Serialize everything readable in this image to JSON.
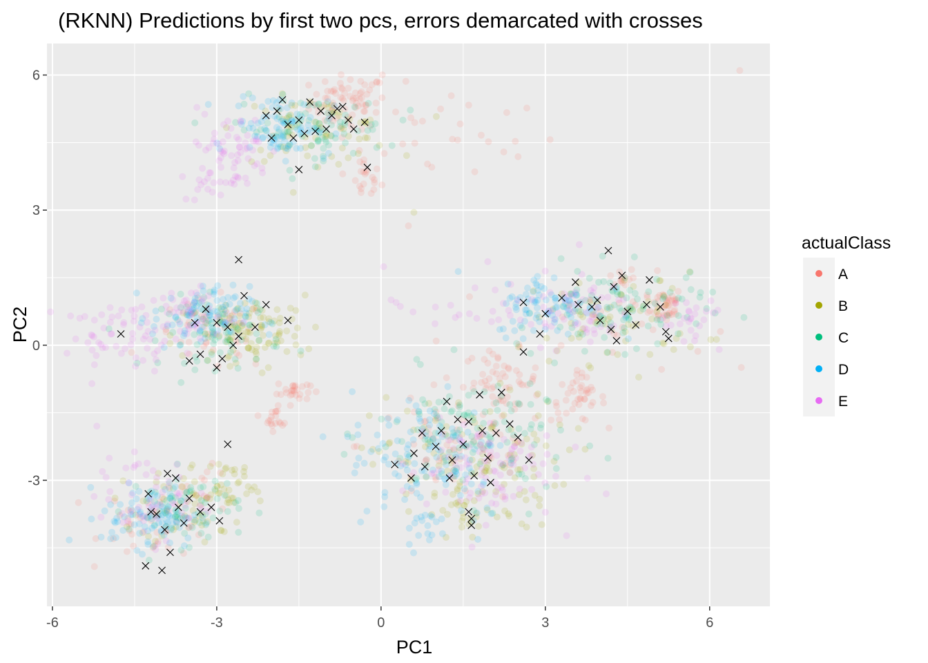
{
  "chart_data": {
    "type": "scatter",
    "title": "(RKNN) Predictions by first two pcs, errors demarcated with crosses",
    "xlabel": "PC1",
    "ylabel": "PC2",
    "xlim": [
      -6.1,
      7.1
    ],
    "ylim": [
      -5.8,
      6.7
    ],
    "x_ticks": [
      -6,
      -3,
      0,
      3,
      6
    ],
    "y_ticks": [
      -3,
      0,
      3,
      6
    ],
    "x_tick_labels": [
      "-6",
      "-3",
      "0",
      "3",
      "6"
    ],
    "y_tick_labels": [
      "-3",
      "0",
      "3",
      "6"
    ],
    "grid": true,
    "background": "#ebebeb",
    "legend": {
      "title": "actualClass",
      "position": "right",
      "entries": [
        {
          "label": "A",
          "color": "#F8766D"
        },
        {
          "label": "B",
          "color": "#A3A500"
        },
        {
          "label": "C",
          "color": "#00BF7D"
        },
        {
          "label": "D",
          "color": "#00B0F6"
        },
        {
          "label": "E",
          "color": "#E76BF3"
        }
      ]
    },
    "point_alpha": 0.15,
    "error_marker": "cross",
    "series": [
      {
        "name": "A",
        "color": "#F8766D",
        "clusters": [
          {
            "cx": -0.6,
            "cy": 5.4,
            "sx": 0.35,
            "sy": 0.3,
            "n": 70
          },
          {
            "cx": -0.3,
            "cy": 3.7,
            "sx": 0.15,
            "sy": 0.25,
            "n": 20
          },
          {
            "cx": 1.2,
            "cy": 4.7,
            "sx": 1.0,
            "sy": 0.6,
            "n": 30
          },
          {
            "cx": 5.2,
            "cy": 0.9,
            "sx": 0.15,
            "sy": 0.2,
            "n": 40
          },
          {
            "cx": 4.4,
            "cy": 1.5,
            "sx": 0.12,
            "sy": 0.12,
            "n": 12
          },
          {
            "cx": 4.4,
            "cy": 0.5,
            "sx": 0.8,
            "sy": 0.5,
            "n": 30
          },
          {
            "cx": -1.6,
            "cy": -1.0,
            "sx": 0.15,
            "sy": 0.12,
            "n": 25
          },
          {
            "cx": -1.9,
            "cy": -1.6,
            "sx": 0.12,
            "sy": 0.15,
            "n": 20
          },
          {
            "cx": 2.2,
            "cy": -0.8,
            "sx": 0.35,
            "sy": 0.35,
            "n": 55
          },
          {
            "cx": 3.6,
            "cy": -1.2,
            "sx": 0.25,
            "sy": 0.25,
            "n": 40
          },
          {
            "cx": 1.4,
            "cy": -2.2,
            "sx": 0.9,
            "sy": 0.7,
            "n": 60
          },
          {
            "cx": -3.1,
            "cy": 0.2,
            "sx": 0.55,
            "sy": 0.4,
            "n": 40
          },
          {
            "cx": -4.1,
            "cy": -3.9,
            "sx": 0.5,
            "sy": 0.4,
            "n": 40
          },
          {
            "cx": -3.2,
            "cy": -3.1,
            "sx": 0.2,
            "sy": 0.2,
            "n": 10
          }
        ]
      },
      {
        "name": "B",
        "color": "#A3A500",
        "clusters": [
          {
            "cx": -1.2,
            "cy": 4.8,
            "sx": 0.7,
            "sy": 0.35,
            "n": 70
          },
          {
            "cx": -2.6,
            "cy": 0.2,
            "sx": 0.6,
            "sy": 0.45,
            "n": 80
          },
          {
            "cx": -2.0,
            "cy": 0.5,
            "sx": 0.3,
            "sy": 0.35,
            "n": 25
          },
          {
            "cx": -3.4,
            "cy": -3.5,
            "sx": 0.5,
            "sy": 0.45,
            "n": 60
          },
          {
            "cx": -2.8,
            "cy": -3.1,
            "sx": 0.3,
            "sy": 0.35,
            "n": 25
          },
          {
            "cx": 1.6,
            "cy": -2.6,
            "sx": 0.9,
            "sy": 0.75,
            "n": 110
          },
          {
            "cx": 1.6,
            "cy": -3.8,
            "sx": 0.3,
            "sy": 0.3,
            "n": 25
          },
          {
            "cx": 4.3,
            "cy": 0.6,
            "sx": 0.8,
            "sy": 0.5,
            "n": 70
          }
        ]
      },
      {
        "name": "C",
        "color": "#00BF7D",
        "clusters": [
          {
            "cx": -1.3,
            "cy": 4.8,
            "sx": 0.7,
            "sy": 0.35,
            "n": 80
          },
          {
            "cx": -2.9,
            "cy": 0.3,
            "sx": 0.55,
            "sy": 0.4,
            "n": 80
          },
          {
            "cx": -3.6,
            "cy": -3.6,
            "sx": 0.5,
            "sy": 0.4,
            "n": 70
          },
          {
            "cx": 1.7,
            "cy": -2.0,
            "sx": 0.9,
            "sy": 0.7,
            "n": 120
          },
          {
            "cx": 4.4,
            "cy": 0.8,
            "sx": 0.75,
            "sy": 0.45,
            "n": 90
          }
        ]
      },
      {
        "name": "D",
        "color": "#00B0F6",
        "clusters": [
          {
            "cx": -1.8,
            "cy": 4.9,
            "sx": 0.45,
            "sy": 0.35,
            "n": 90
          },
          {
            "cx": -3.3,
            "cy": 0.6,
            "sx": 0.45,
            "sy": 0.35,
            "n": 90
          },
          {
            "cx": -4.2,
            "cy": -3.8,
            "sx": 0.45,
            "sy": 0.35,
            "n": 90
          },
          {
            "cx": 0.9,
            "cy": -2.4,
            "sx": 0.75,
            "sy": 0.7,
            "n": 110
          },
          {
            "cx": 3.1,
            "cy": 0.9,
            "sx": 0.5,
            "sy": 0.35,
            "n": 90
          },
          {
            "cx": 0.9,
            "cy": -3.8,
            "sx": 0.5,
            "sy": 0.3,
            "n": 25
          }
        ]
      },
      {
        "name": "E",
        "color": "#E76BF3",
        "clusters": [
          {
            "cx": -2.8,
            "cy": 4.3,
            "sx": 0.4,
            "sy": 0.45,
            "n": 60
          },
          {
            "cx": -3.1,
            "cy": 3.6,
            "sx": 0.25,
            "sy": 0.2,
            "n": 15
          },
          {
            "cx": -4.7,
            "cy": 0.2,
            "sx": 0.55,
            "sy": 0.35,
            "n": 60
          },
          {
            "cx": -3.5,
            "cy": 0.7,
            "sx": 0.4,
            "sy": 0.3,
            "n": 50
          },
          {
            "cx": -4.2,
            "cy": -3.4,
            "sx": 0.5,
            "sy": 0.45,
            "n": 60
          },
          {
            "cx": 1.8,
            "cy": -2.7,
            "sx": 0.7,
            "sy": 0.6,
            "n": 100
          },
          {
            "cx": 3.4,
            "cy": 0.8,
            "sx": 0.6,
            "sy": 0.4,
            "n": 60
          },
          {
            "cx": 5.7,
            "cy": 0.4,
            "sx": 0.3,
            "sy": 0.3,
            "n": 25
          },
          {
            "cx": 1.5,
            "cy": 0.9,
            "sx": 0.7,
            "sy": 0.4,
            "n": 20
          }
        ]
      }
    ],
    "outlier_points": [
      {
        "x": 6.55,
        "y": 6.1,
        "series": "A"
      },
      {
        "x": 0.5,
        "y": 2.65,
        "series": "A"
      },
      {
        "x": 0.6,
        "y": 2.95,
        "series": "B"
      },
      {
        "x": -5.5,
        "y": 0.6,
        "series": "E"
      },
      {
        "x": 0.4,
        "y": 5.0,
        "series": "C"
      }
    ],
    "errors": [
      {
        "x": -2.1,
        "y": 5.1
      },
      {
        "x": -1.9,
        "y": 5.2
      },
      {
        "x": -1.7,
        "y": 4.9
      },
      {
        "x": -1.5,
        "y": 5.0
      },
      {
        "x": -1.4,
        "y": 4.7
      },
      {
        "x": -1.2,
        "y": 4.75
      },
      {
        "x": -1.0,
        "y": 4.8
      },
      {
        "x": -0.8,
        "y": 5.25
      },
      {
        "x": -0.7,
        "y": 5.3
      },
      {
        "x": -0.6,
        "y": 5.0
      },
      {
        "x": -0.5,
        "y": 4.8
      },
      {
        "x": -0.3,
        "y": 4.95
      },
      {
        "x": -0.25,
        "y": 3.95
      },
      {
        "x": -1.5,
        "y": 3.9
      },
      {
        "x": -1.8,
        "y": 5.45
      },
      {
        "x": -1.3,
        "y": 5.4
      },
      {
        "x": -2.0,
        "y": 4.6
      },
      {
        "x": -1.1,
        "y": 5.2
      },
      {
        "x": -0.9,
        "y": 5.1
      },
      {
        "x": -1.6,
        "y": 4.6
      },
      {
        "x": -2.6,
        "y": 1.9
      },
      {
        "x": -3.2,
        "y": 0.8
      },
      {
        "x": -3.0,
        "y": 0.5
      },
      {
        "x": -2.8,
        "y": 0.4
      },
      {
        "x": -3.3,
        "y": -0.2
      },
      {
        "x": -3.0,
        "y": -0.5
      },
      {
        "x": -2.6,
        "y": 0.2
      },
      {
        "x": -2.5,
        "y": 1.1
      },
      {
        "x": -2.3,
        "y": 0.4
      },
      {
        "x": -1.7,
        "y": 0.55
      },
      {
        "x": -3.5,
        "y": -0.35
      },
      {
        "x": -2.9,
        "y": -0.3
      },
      {
        "x": -4.75,
        "y": 0.25
      },
      {
        "x": -2.1,
        "y": 0.9
      },
      {
        "x": -3.4,
        "y": 0.5
      },
      {
        "x": -2.7,
        "y": 0.0
      },
      {
        "x": -2.8,
        "y": -2.2
      },
      {
        "x": -3.9,
        "y": -2.85
      },
      {
        "x": -4.25,
        "y": -3.3
      },
      {
        "x": -3.5,
        "y": -3.4
      },
      {
        "x": -3.3,
        "y": -3.7
      },
      {
        "x": -3.7,
        "y": -3.6
      },
      {
        "x": -4.1,
        "y": -3.75
      },
      {
        "x": -3.95,
        "y": -4.1
      },
      {
        "x": -4.3,
        "y": -4.9
      },
      {
        "x": -4.0,
        "y": -5.0
      },
      {
        "x": -3.85,
        "y": -4.6
      },
      {
        "x": -2.95,
        "y": -3.9
      },
      {
        "x": -3.6,
        "y": -3.95
      },
      {
        "x": -4.2,
        "y": -3.7
      },
      {
        "x": -3.1,
        "y": -3.6
      },
      {
        "x": -3.75,
        "y": -2.95
      },
      {
        "x": 2.6,
        "y": -0.15
      },
      {
        "x": 2.2,
        "y": -1.05
      },
      {
        "x": 1.8,
        "y": -1.1
      },
      {
        "x": 1.6,
        "y": -1.7
      },
      {
        "x": 1.2,
        "y": -1.25
      },
      {
        "x": 1.1,
        "y": -1.9
      },
      {
        "x": 0.75,
        "y": -1.95
      },
      {
        "x": 0.6,
        "y": -2.4
      },
      {
        "x": 0.25,
        "y": -2.65
      },
      {
        "x": 0.55,
        "y": -2.95
      },
      {
        "x": 0.8,
        "y": -2.7
      },
      {
        "x": 1.0,
        "y": -2.25
      },
      {
        "x": 1.3,
        "y": -2.55
      },
      {
        "x": 1.5,
        "y": -2.2
      },
      {
        "x": 1.25,
        "y": -2.95
      },
      {
        "x": 1.6,
        "y": -3.7
      },
      {
        "x": 1.65,
        "y": -3.85
      },
      {
        "x": 1.65,
        "y": -4.0
      },
      {
        "x": 1.85,
        "y": -1.9
      },
      {
        "x": 2.1,
        "y": -1.95
      },
      {
        "x": 2.35,
        "y": -1.75
      },
      {
        "x": 2.7,
        "y": -2.55
      },
      {
        "x": 2.5,
        "y": -2.05
      },
      {
        "x": 1.95,
        "y": -2.5
      },
      {
        "x": 2.0,
        "y": -3.05
      },
      {
        "x": 1.7,
        "y": -2.9
      },
      {
        "x": 1.4,
        "y": -1.65
      },
      {
        "x": 2.9,
        "y": 0.25
      },
      {
        "x": 3.0,
        "y": 0.7
      },
      {
        "x": 3.3,
        "y": 1.05
      },
      {
        "x": 3.6,
        "y": 0.9
      },
      {
        "x": 3.55,
        "y": 1.4
      },
      {
        "x": 3.85,
        "y": 0.85
      },
      {
        "x": 4.0,
        "y": 0.55
      },
      {
        "x": 4.2,
        "y": 0.35
      },
      {
        "x": 4.15,
        "y": 2.1
      },
      {
        "x": 4.25,
        "y": 1.3
      },
      {
        "x": 4.5,
        "y": 0.75
      },
      {
        "x": 4.85,
        "y": 0.9
      },
      {
        "x": 4.9,
        "y": 1.45
      },
      {
        "x": 5.1,
        "y": 0.85
      },
      {
        "x": 5.2,
        "y": 0.3
      },
      {
        "x": 5.25,
        "y": 0.15
      },
      {
        "x": 4.4,
        "y": 1.55
      },
      {
        "x": 2.6,
        "y": 0.95
      },
      {
        "x": 4.3,
        "y": 0.1
      },
      {
        "x": 3.95,
        "y": 1.0
      },
      {
        "x": 4.65,
        "y": 0.45
      }
    ]
  }
}
